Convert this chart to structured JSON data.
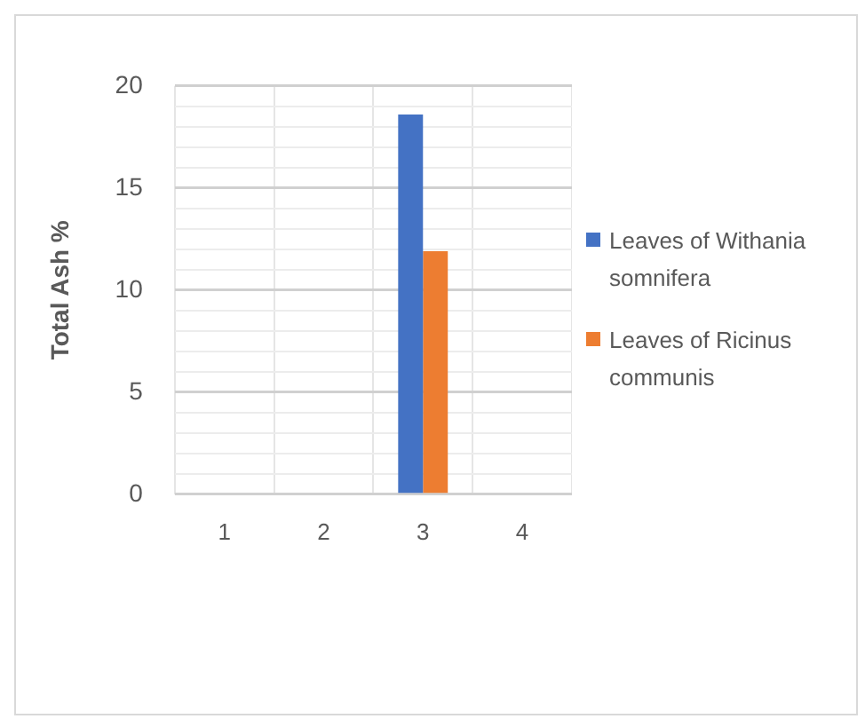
{
  "chart_data": {
    "type": "bar",
    "ylabel": "Total Ash %",
    "categories": [
      "1",
      "2",
      "3",
      "4"
    ],
    "series": [
      {
        "name": "Leaves of Withania somnifera",
        "color": "#4472c4",
        "values": [
          null,
          null,
          18.6,
          null
        ]
      },
      {
        "name": "Leaves of Ricinus communis",
        "color": "#ed7d31",
        "values": [
          null,
          null,
          11.9,
          null
        ]
      }
    ],
    "ylim": [
      0,
      20
    ],
    "yticks": [
      0,
      {
        "value": 1,
        "label": null
      },
      {
        "value": 2,
        "label": null
      },
      {
        "value": 3,
        "label": null
      },
      {
        "value": 4,
        "label": null
      },
      5,
      {
        "value": 6,
        "label": null
      },
      {
        "value": 7,
        "label": null
      },
      {
        "value": 8,
        "label": null
      },
      {
        "value": 9,
        "label": null
      },
      10,
      {
        "value": 11,
        "label": null
      },
      {
        "value": 12,
        "label": null
      },
      {
        "value": 13,
        "label": null
      },
      {
        "value": 14,
        "label": null
      },
      15,
      {
        "value": 16,
        "label": null
      },
      {
        "value": 17,
        "label": null
      },
      {
        "value": 18,
        "label": null
      },
      {
        "value": 19,
        "label": null
      },
      20
    ],
    "grid": true,
    "legend": "right"
  }
}
